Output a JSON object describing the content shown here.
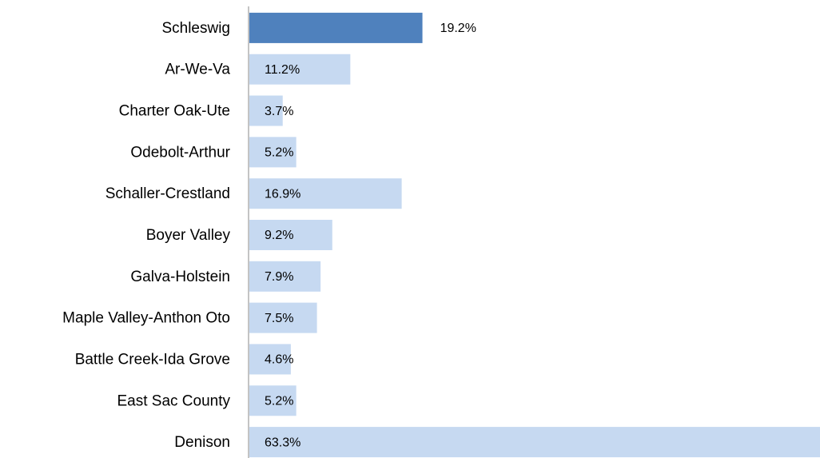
{
  "chart_data": {
    "type": "bar",
    "orientation": "horizontal",
    "categories": [
      "Schleswig",
      "Ar-We-Va",
      "Charter Oak-Ute",
      "Odebolt-Arthur",
      "Schaller-Crestland",
      "Boyer Valley",
      "Galva-Holstein",
      "Maple Valley-Anthon Oto",
      "Battle Creek-Ida Grove",
      "East Sac County",
      "Denison"
    ],
    "values": [
      19.2,
      11.2,
      3.7,
      5.2,
      16.9,
      9.2,
      7.9,
      7.5,
      4.6,
      5.2,
      63.3
    ],
    "value_labels": [
      "19.2%",
      "11.2%",
      "3.7%",
      "5.2%",
      "16.9%",
      "9.2%",
      "7.9%",
      "7.5%",
      "4.6%",
      "5.2%",
      "63.3%"
    ],
    "colors": [
      "#4f81bd",
      "#c6d9f1",
      "#c6d9f1",
      "#c6d9f1",
      "#c6d9f1",
      "#c6d9f1",
      "#c6d9f1",
      "#c6d9f1",
      "#c6d9f1",
      "#c6d9f1",
      "#c6d9f1"
    ]
  }
}
